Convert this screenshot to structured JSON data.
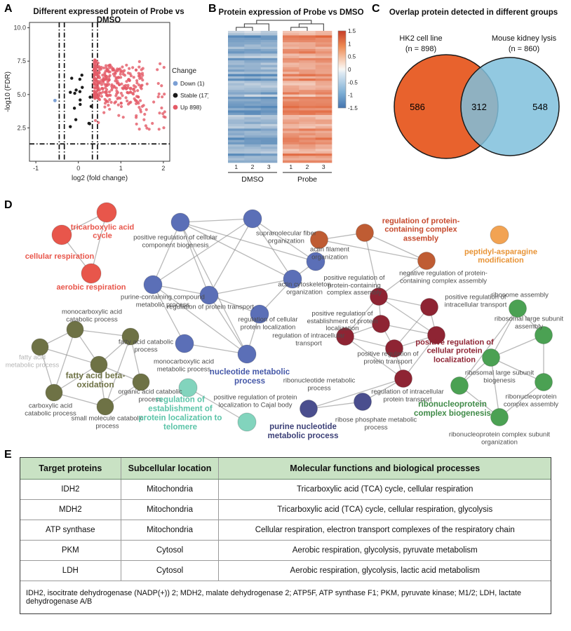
{
  "panelA": {
    "label": "A",
    "title": "Different expressed protein of Probe vs DMSO",
    "chart_data": {
      "type": "scatter",
      "subtype": "volcano",
      "xlabel": "log2 (fold change)",
      "ylabel": "-log10 (FDR)",
      "xlim": [
        -1.15,
        2.15
      ],
      "ylim": [
        0,
        10.4
      ],
      "xticks": [
        -1,
        0,
        1,
        2
      ],
      "yticks": [
        2.5,
        5.0,
        7.5,
        10.0
      ],
      "legend_title": "Change",
      "legend": [
        {
          "label": "Down (1)",
          "color": "#7b9fd4",
          "count": 1
        },
        {
          "label": "Stable (17)",
          "color": "#1a1a1a",
          "count": 17
        },
        {
          "label": "Up 898)",
          "color": "#e45a66",
          "count": 898
        }
      ],
      "thresholds": {
        "vlines": [
          -0.45,
          -0.33,
          0.33,
          0.45
        ],
        "hline": 1.3
      },
      "series_summary": {
        "up": {
          "n": 898,
          "x_range": [
            0.35,
            2.05
          ],
          "y_range": [
            2.3,
            8.2
          ]
        },
        "stable": {
          "n": 17,
          "x_range": [
            -0.3,
            0.34
          ],
          "y_range": [
            2.4,
            6.6
          ]
        },
        "down": {
          "points": [
            [
              -0.55,
              4.55
            ]
          ]
        }
      }
    }
  },
  "panelB": {
    "label": "B",
    "title": "Protein expression of Probe vs DMSO",
    "chart_data": {
      "type": "heatmap",
      "rows": 58,
      "groups": [
        {
          "name": "DMSO",
          "columns": [
            "1",
            "2",
            "3"
          ],
          "mean_z": -0.8
        },
        {
          "name": "Probe",
          "columns": [
            "1",
            "2",
            "3"
          ],
          "mean_z": 0.8
        }
      ],
      "colorbar_ticks": [
        1.5,
        1,
        0.5,
        0,
        -0.5,
        -1,
        -1.5
      ],
      "colormap": {
        "high": "#d84b2f",
        "mid": "#f7f7f5",
        "low": "#4474ae"
      }
    }
  },
  "panelC": {
    "label": "C",
    "title": "Overlap protein detected in different groups",
    "chart_data": {
      "type": "venn",
      "sets": [
        {
          "label": "HK2 cell line",
          "n_label": "(n = 898)",
          "unique": "586",
          "color": "#e8622d"
        },
        {
          "label": "Mouse kidney lysis",
          "n_label": "(n = 860)",
          "unique": "548",
          "color": "#7fbfdc"
        }
      ],
      "overlap": "312"
    }
  },
  "panelD": {
    "label": "D",
    "network": {
      "colors": {
        "red": "#e8564b",
        "blue": "#5b6fb7",
        "olive": "#6e7245",
        "teal": "#82d4bd",
        "darkred": "#8e2433",
        "brown": "#bf5c33",
        "orange": "#f2a353",
        "green": "#4ba153",
        "navy": "#4a4e8e"
      },
      "nodes": [
        [
          152,
          21,
          "red"
        ],
        [
          88,
          53,
          "red"
        ],
        [
          130,
          108,
          "red"
        ],
        [
          257,
          35,
          "blue"
        ],
        [
          360,
          30,
          "blue"
        ],
        [
          218,
          124,
          "blue"
        ],
        [
          298,
          139,
          "blue"
        ],
        [
          450,
          91,
          "blue"
        ],
        [
          417,
          116,
          "blue"
        ],
        [
          263,
          208,
          "blue"
        ],
        [
          370,
          166,
          "blue"
        ],
        [
          352,
          223,
          "blue"
        ],
        [
          107,
          188,
          "olive"
        ],
        [
          57,
          213,
          "olive"
        ],
        [
          186,
          198,
          "olive"
        ],
        [
          141,
          238,
          "olive"
        ],
        [
          201,
          263,
          "olive"
        ],
        [
          77,
          278,
          "olive"
        ],
        [
          150,
          298,
          "olive"
        ],
        [
          268,
          271,
          "teal"
        ],
        [
          352,
          320,
          "teal"
        ],
        [
          440,
          301,
          "navy"
        ],
        [
          517,
          291,
          "navy"
        ],
        [
          540,
          141,
          "darkred"
        ],
        [
          612,
          156,
          "darkred"
        ],
        [
          543,
          180,
          "darkred"
        ],
        [
          492,
          198,
          "darkred"
        ],
        [
          622,
          196,
          "darkred"
        ],
        [
          562,
          215,
          "darkred"
        ],
        [
          575,
          258,
          "darkred"
        ],
        [
          455,
          60,
          "brown"
        ],
        [
          520,
          50,
          "brown"
        ],
        [
          608,
          90,
          "brown"
        ],
        [
          712,
          53,
          "orange"
        ],
        [
          738,
          158,
          "green"
        ],
        [
          775,
          196,
          "green"
        ],
        [
          700,
          228,
          "green"
        ],
        [
          775,
          263,
          "green"
        ],
        [
          655,
          268,
          "green"
        ],
        [
          712,
          313,
          "green"
        ]
      ],
      "edges": [
        [
          0,
          1
        ],
        [
          0,
          2
        ],
        [
          1,
          2
        ],
        [
          3,
          4
        ],
        [
          3,
          5
        ],
        [
          3,
          6
        ],
        [
          3,
          7
        ],
        [
          3,
          8
        ],
        [
          4,
          6
        ],
        [
          4,
          7
        ],
        [
          4,
          8
        ],
        [
          4,
          5
        ],
        [
          5,
          6
        ],
        [
          5,
          9
        ],
        [
          6,
          8
        ],
        [
          6,
          10
        ],
        [
          6,
          11
        ],
        [
          7,
          8
        ],
        [
          8,
          10
        ],
        [
          9,
          11
        ],
        [
          10,
          11
        ],
        [
          3,
          11
        ],
        [
          5,
          11
        ],
        [
          12,
          13
        ],
        [
          12,
          14
        ],
        [
          12,
          15
        ],
        [
          12,
          17
        ],
        [
          13,
          15
        ],
        [
          13,
          17
        ],
        [
          14,
          15
        ],
        [
          14,
          16
        ],
        [
          15,
          16
        ],
        [
          15,
          17
        ],
        [
          15,
          18
        ],
        [
          16,
          18
        ],
        [
          17,
          18
        ],
        [
          14,
          18
        ],
        [
          19,
          20
        ],
        [
          21,
          22
        ],
        [
          23,
          24
        ],
        [
          23,
          25
        ],
        [
          23,
          26
        ],
        [
          23,
          27
        ],
        [
          24,
          27
        ],
        [
          24,
          28
        ],
        [
          25,
          26
        ],
        [
          25,
          27
        ],
        [
          25,
          28
        ],
        [
          26,
          28
        ],
        [
          26,
          29
        ],
        [
          27,
          28
        ],
        [
          27,
          29
        ],
        [
          28,
          29
        ],
        [
          30,
          31
        ],
        [
          30,
          32
        ],
        [
          31,
          32
        ],
        [
          34,
          35
        ],
        [
          34,
          36
        ],
        [
          34,
          38
        ],
        [
          35,
          36
        ],
        [
          35,
          37
        ],
        [
          36,
          37
        ],
        [
          36,
          38
        ],
        [
          36,
          39
        ],
        [
          37,
          39
        ],
        [
          38,
          39
        ],
        [
          31,
          23
        ],
        [
          32,
          23
        ],
        [
          29,
          21
        ],
        [
          29,
          22
        ],
        [
          30,
          7
        ]
      ],
      "labels": [
        [
          "tricarboxylic acid cycle",
          146,
          49,
          110,
          "#e8564b",
          1,
          11
        ],
        [
          "cellular respiration",
          85,
          84,
          130,
          "#e8564b",
          1,
          11
        ],
        [
          "aerobic respiration",
          130,
          128,
          140,
          "#e8564b",
          1,
          11
        ],
        [
          "positive regulation of cellular component biogenesis",
          250,
          63,
          120,
          "#4d4d4d",
          0,
          9.5
        ],
        [
          "supramolecular fiber organization",
          408,
          57,
          105,
          "#4d4d4d",
          0,
          9.5
        ],
        [
          "actin filament organization",
          470,
          80,
          95,
          "#4d4d4d",
          0,
          9.5
        ],
        [
          "actin cytoskeleton organization",
          434,
          130,
          95,
          "#4d4d4d",
          0,
          9.5
        ],
        [
          "purine-containing compound metabolic process",
          232,
          148,
          135,
          "#4d4d4d",
          0,
          9.5
        ],
        [
          "regulation of protein transport",
          300,
          157,
          125,
          "#4d4d4d",
          0,
          9.5
        ],
        [
          "regulation of cellular protein localization",
          382,
          180,
          115,
          "#4d4d4d",
          0,
          9.5
        ],
        [
          "monocarboxylic acid metabolic process",
          262,
          240,
          125,
          "#4d4d4d",
          0,
          9.5
        ],
        [
          "nucleotide metabolic process",
          356,
          256,
          115,
          "#4558a8",
          1,
          11.5
        ],
        [
          "monocarboxylic acid catabolic process",
          131,
          169,
          110,
          "#4d4d4d",
          0,
          9.5
        ],
        [
          "fatty acid metabolic process",
          46,
          234,
          80,
          "#b5b5b5",
          0,
          9.5
        ],
        [
          "fatty acid catabolic process",
          208,
          212,
          95,
          "#4d4d4d",
          0,
          9.5
        ],
        [
          "fatty acid beta-oxidation",
          136,
          261,
          105,
          "#6e7245",
          1,
          12
        ],
        [
          "organic acid catabolic process",
          214,
          283,
          95,
          "#4d4d4d",
          0,
          9.5
        ],
        [
          "carboxylic acid catabolic process",
          72,
          303,
          100,
          "#4d4d4d",
          0,
          9.5
        ],
        [
          "small molecule catabolic process",
          153,
          321,
          110,
          "#4d4d4d",
          0,
          9.5
        ],
        [
          "regulation of establishment of protein localization to telomere",
          257,
          308,
          125,
          "#5bc4a8",
          1,
          11.5
        ],
        [
          "positive regulation of protein localization to Cajal body",
          364,
          291,
          140,
          "#4d4d4d",
          0,
          9.5
        ],
        [
          "ribonucleotide metabolic process",
          455,
          267,
          120,
          "#4d4d4d",
          0,
          9.5
        ],
        [
          "purine nucleotide metabolic process",
          432,
          334,
          115,
          "#3d4178",
          1,
          11.5
        ],
        [
          "ribose phosphate metabolic process",
          536,
          323,
          125,
          "#4d4d4d",
          0,
          9.5
        ],
        [
          "positive regulation of protein-containing complex assembly",
          505,
          126,
          110,
          "#4d4d4d",
          0,
          9.5
        ],
        [
          "positive regulation of intracellular transport",
          678,
          148,
          110,
          "#4d4d4d",
          0,
          9.5
        ],
        [
          "positive regulation of establishment of protein localization",
          488,
          177,
          145,
          "#4d4d4d",
          0,
          9.5
        ],
        [
          "regulation of intracellular transport",
          440,
          203,
          120,
          "#4d4d4d",
          0,
          9.5
        ],
        [
          "positive regulation of cellular protein localization",
          648,
          219,
          125,
          "#8e2433",
          1,
          11
        ],
        [
          "positive regulation of protein transport",
          553,
          229,
          100,
          "#4d4d4d",
          0,
          9.5
        ],
        [
          "regulation of intracellular protein transport",
          581,
          283,
          130,
          "#4d4d4d",
          0,
          9.5
        ],
        [
          "regulation of protein-containing complex assembly",
          600,
          46,
          135,
          "#c64a2e",
          1,
          11
        ],
        [
          "negative regulation of protein-containing complex assembly",
          632,
          114,
          145,
          "#4d4d4d",
          0,
          9.5
        ],
        [
          "peptidyl-asparagine modification",
          714,
          84,
          110,
          "#e89335",
          1,
          11
        ],
        [
          "ribosome assembly",
          741,
          140,
          120,
          "#4d4d4d",
          0,
          9.5
        ],
        [
          "ribosomal large subunit assembly",
          754,
          179,
          120,
          "#4d4d4d",
          0,
          9.5
        ],
        [
          "ribosomal large subunit biogenesis",
          712,
          256,
          135,
          "#4d4d4d",
          0,
          9.5
        ],
        [
          "ribonucleoprotein complex assembly",
          757,
          290,
          110,
          "#4d4d4d",
          0,
          9.5
        ],
        [
          "ribonucleoprotein complex biogenesis",
          645,
          302,
          130,
          "#3f8a47",
          1,
          11.5
        ],
        [
          "ribonucleoprotein complex subunit organization",
          712,
          344,
          145,
          "#4d4d4d",
          0,
          9.5
        ]
      ]
    }
  },
  "panelE": {
    "label": "E",
    "columns": [
      "Target proteins",
      "Subcellular location",
      "Molecular functions and biological processes"
    ],
    "rows": [
      [
        "IDH2",
        "Mitochondria",
        "Tricarboxylic acid (TCA) cycle, cellular respiration"
      ],
      [
        "MDH2",
        "Mitochondria",
        "Tricarboxylic acid (TCA) cycle, cellular respiration, glycolysis"
      ],
      [
        "ATP synthase",
        "Mitochondria",
        "Cellular respiration, electron transport complexes of the respiratory chain"
      ],
      [
        "PKM",
        "Cytosol",
        "Aerobic respiration, glycolysis, pyruvate metabolism"
      ],
      [
        "LDH",
        "Cytosol",
        "Aerobic respiration, glycolysis, lactic acid metabolism"
      ]
    ],
    "footnote": "IDH2, isocitrate dehydrogenase (NADP(+)) 2; MDH2, malate dehydrogenase 2; ATP5F, ATP synthase F1; PKM, pyruvate kinase; M1/2; LDH, lactate dehydrogenase A/B"
  }
}
